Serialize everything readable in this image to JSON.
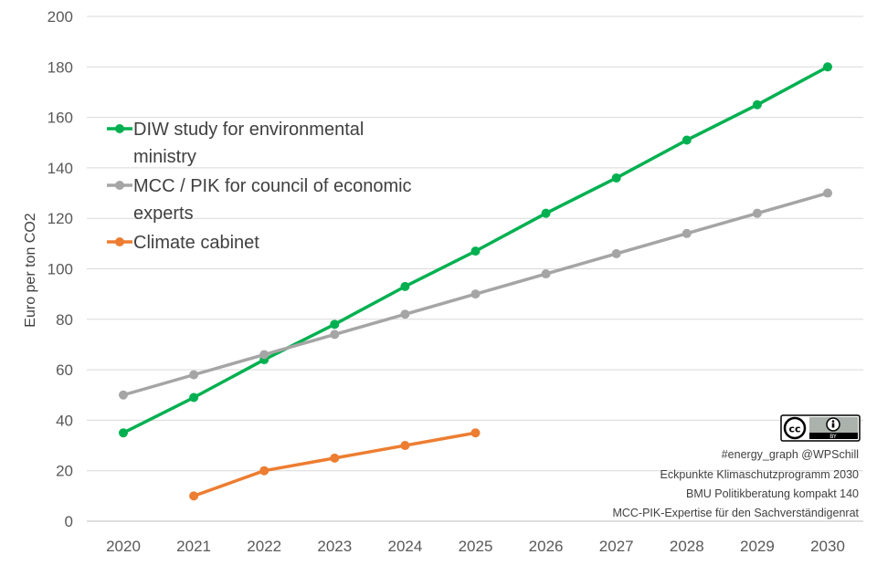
{
  "chart_data": {
    "type": "line",
    "title": "",
    "xlabel": "",
    "ylabel": "Euro per ton CO2",
    "ylim": [
      0,
      200
    ],
    "yticks": [
      0,
      20,
      40,
      60,
      80,
      100,
      120,
      140,
      160,
      180,
      200
    ],
    "categories": [
      "2020",
      "2021",
      "2022",
      "2023",
      "2024",
      "2025",
      "2026",
      "2027",
      "2028",
      "2029",
      "2030"
    ],
    "grid": true,
    "legend_position": "top-left",
    "series": [
      {
        "name": "DIW study for environmental ministry",
        "legend_lines": [
          "DIW study for environmental",
          "ministry"
        ],
        "color": "#00B050",
        "values": [
          35,
          49,
          64,
          78,
          93,
          107,
          122,
          136,
          151,
          165,
          180
        ]
      },
      {
        "name": "MCC / PIK for council of economic experts",
        "legend_lines": [
          "MCC / PIK for council of economic",
          "experts"
        ],
        "color": "#A5A5A5",
        "values": [
          50,
          58,
          66,
          74,
          82,
          90,
          98,
          106,
          114,
          122,
          130
        ]
      },
      {
        "name": "Climate cabinet",
        "legend_lines": [
          "Climate cabinet"
        ],
        "color": "#ED7D31",
        "values": [
          null,
          10,
          20,
          25,
          30,
          35,
          null,
          null,
          null,
          null,
          null
        ]
      }
    ],
    "annotations": [
      "#energy_graph @WPSchill",
      "Eckpunkte Klimaschutzprogramm 2030",
      "BMU Politikberatung kompakt 140",
      "MCC-PIK-Expertise für den Sachverständigenrat"
    ],
    "license_badge": {
      "icon": "cc-by-icon",
      "text": "BY"
    }
  }
}
